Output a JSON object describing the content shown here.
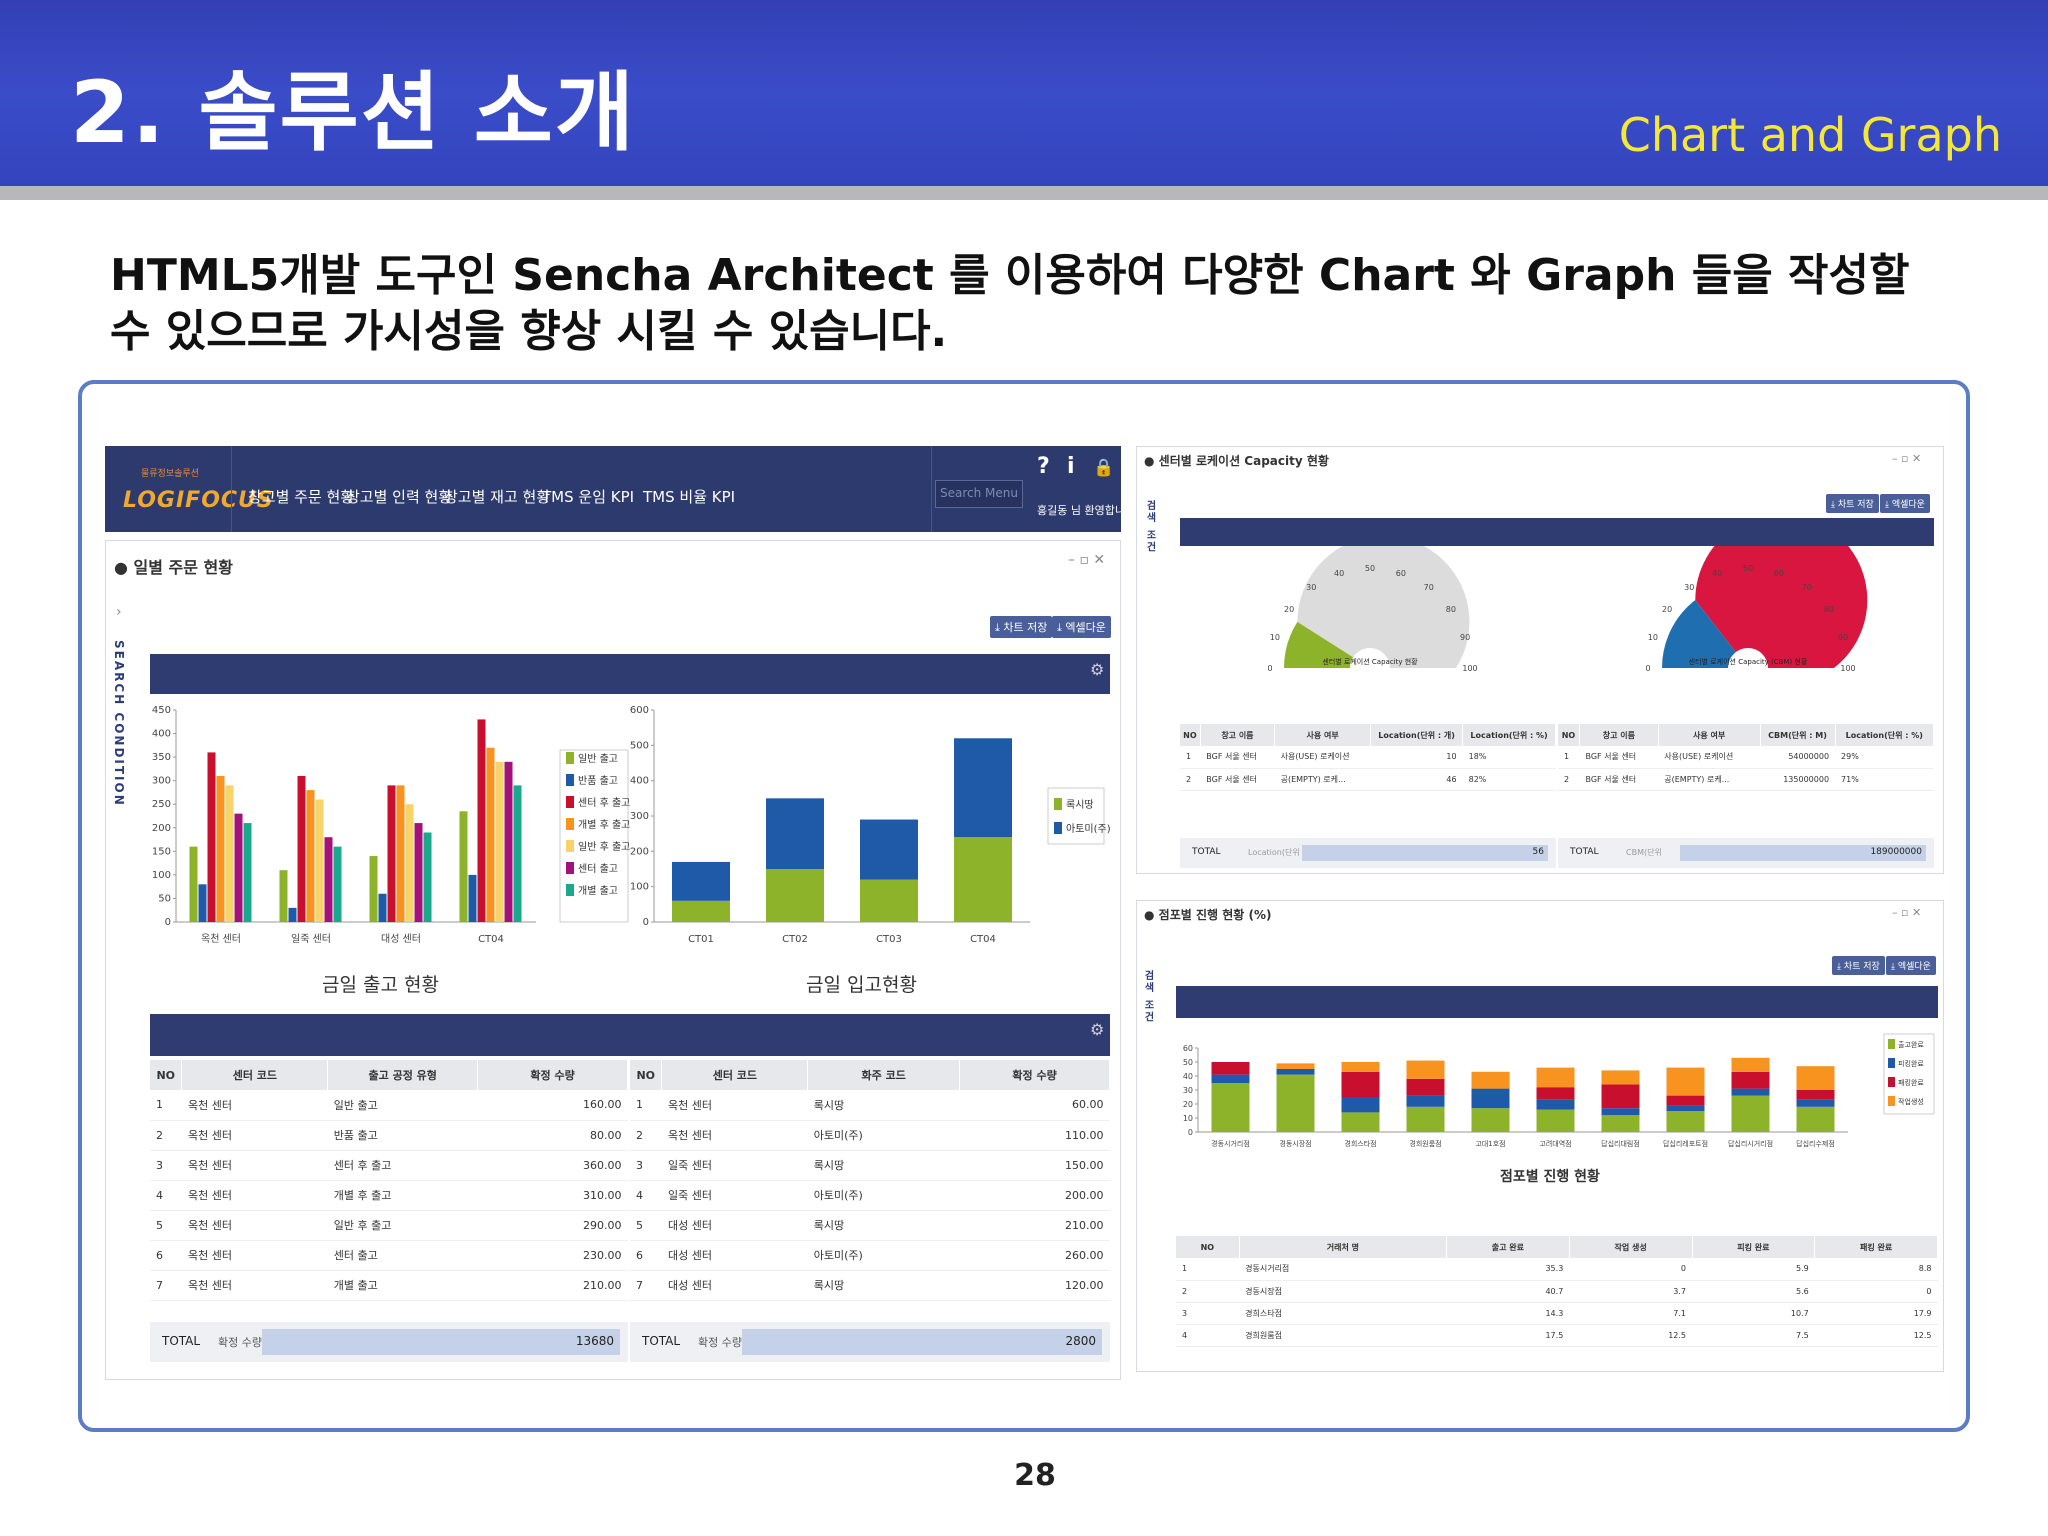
{
  "slide": {
    "title": "2. 솔루션 소개",
    "subtitle": "Chart and Graph",
    "desc_line1": "HTML5개발 도구인 Sencha Architect 를 이용하여 다양한 Chart 와 Graph 들을 작성할",
    "desc_line2": "수 있으므로 가시성을 향상 시킬 수 있습니다.",
    "page": "28"
  },
  "app": {
    "logo_small": "물류정보솔루션",
    "logo": "LOGIFOCUS",
    "nav": [
      "창고별 주문 현황",
      "창고별 인력 현황",
      "창고별 재고 현황",
      "TMS 운임 KPI",
      "TMS 비율 KPI"
    ],
    "search_placeholder": "Search Menu",
    "user_text": "홍길동 님 환영합니다",
    "icons": {
      "help": "?",
      "info": "i",
      "lock": "🔒"
    }
  },
  "left_panel": {
    "title": "일별 주문 현황",
    "side_label": "SEARCH CONDITION",
    "btn_save": "⤓ 차트 저장",
    "btn_excel": "⤓ 엑셀다운",
    "table_left": {
      "headers": [
        "NO",
        "센터 코드",
        "출고 공정 유형",
        "확정 수량"
      ],
      "rows": [
        [
          "1",
          "옥천 센터",
          "일반 출고",
          "160.00"
        ],
        [
          "2",
          "옥천 센터",
          "반품 출고",
          "80.00"
        ],
        [
          "3",
          "옥천 센터",
          "센터 후 출고",
          "360.00"
        ],
        [
          "4",
          "옥천 센터",
          "개별 후 출고",
          "310.00"
        ],
        [
          "5",
          "옥천 센터",
          "일반 후 출고",
          "290.00"
        ],
        [
          "6",
          "옥천 센터",
          "센터 출고",
          "230.00"
        ],
        [
          "7",
          "옥천 센터",
          "개별 출고",
          "210.00"
        ]
      ],
      "total_label": "TOTAL",
      "total_field": "확정 수량",
      "total_value": "13680"
    },
    "table_right": {
      "headers": [
        "NO",
        "센터 코드",
        "화주 코드",
        "확정 수량"
      ],
      "rows": [
        [
          "1",
          "옥천 센터",
          "록시땅",
          "60.00"
        ],
        [
          "2",
          "옥천 센터",
          "아토미(주)",
          "110.00"
        ],
        [
          "3",
          "일죽 센터",
          "록시땅",
          "150.00"
        ],
        [
          "4",
          "일죽 센터",
          "아토미(주)",
          "200.00"
        ],
        [
          "5",
          "대성 센터",
          "록시땅",
          "210.00"
        ],
        [
          "6",
          "대성 센터",
          "아토미(주)",
          "260.00"
        ],
        [
          "7",
          "대성 센터",
          "록시땅",
          "120.00"
        ]
      ],
      "total_label": "TOTAL",
      "total_field": "확정 수량",
      "total_value": "2800"
    }
  },
  "capacity_panel": {
    "title": "센터별 로케이션 Capacity 현황",
    "side_label": "검색 조건",
    "btn_save": "⤓ 차트 저장",
    "btn_excel": "⤓ 엑셀다운",
    "table_left": {
      "headers": [
        "NO",
        "창고 이름",
        "사용 여부",
        "Location(단위 : 개)",
        "Location(단위 : %)"
      ],
      "rows": [
        [
          "1",
          "BGF 서울 센터",
          "사용(USE) 로케이션",
          "10",
          "18%"
        ],
        [
          "2",
          "BGF 서울 센터",
          "공(EMPTY) 로케...",
          "46",
          "82%"
        ]
      ],
      "total_label": "TOTAL",
      "total_field": "Location(단위",
      "total_value": "56"
    },
    "table_right": {
      "headers": [
        "NO",
        "창고 이름",
        "사용 여부",
        "CBM(단위 : M)",
        "Location(단위 : %)"
      ],
      "rows": [
        [
          "1",
          "BGF 서울 센터",
          "사용(USE) 로케이션",
          "54000000",
          "29%"
        ],
        [
          "2",
          "BGF 서울 센터",
          "공(EMPTY) 로케...",
          "135000000",
          "71%"
        ]
      ],
      "total_label": "TOTAL",
      "total_field": "CBM(단위",
      "total_value": "189000000"
    }
  },
  "progress_panel": {
    "title": "점포별 진행 현황 (%)",
    "side_label": "검색 조건",
    "btn_save": "⤓ 차트 저장",
    "btn_excel": "⤓ 엑셀다운",
    "table": {
      "headers": [
        "NO",
        "거래처 명",
        "출고 완료",
        "작업 생성",
        "피킹 완료",
        "패킹 완료"
      ],
      "rows": [
        [
          "1",
          "경동시거리점",
          "35.3",
          "0",
          "5.9",
          "8.8"
        ],
        [
          "2",
          "경동시장점",
          "40.7",
          "3.7",
          "5.6",
          "0"
        ],
        [
          "3",
          "경희스타점",
          "14.3",
          "7.1",
          "10.7",
          "17.9"
        ],
        [
          "4",
          "경희원룸점",
          "17.5",
          "12.5",
          "7.5",
          "12.5"
        ]
      ]
    }
  },
  "chart_data": [
    {
      "type": "bar",
      "title": "금일 출고 현황",
      "categories": [
        "옥천 센터",
        "일죽 센터",
        "대성 센터",
        "CT04"
      ],
      "ylim": [
        0,
        450
      ],
      "yticks": [
        0,
        50,
        100,
        150,
        200,
        250,
        300,
        350,
        400,
        450
      ],
      "legend_position": "right",
      "series": [
        {
          "name": "일반 출고",
          "color": "#8db32a",
          "values": [
            160,
            110,
            140,
            235
          ]
        },
        {
          "name": "반품 출고",
          "color": "#1f5aa8",
          "values": [
            80,
            30,
            60,
            100
          ]
        },
        {
          "name": "센터 후 출고",
          "color": "#c8102e",
          "values": [
            360,
            310,
            290,
            430
          ]
        },
        {
          "name": "개별 후 출고",
          "color": "#f7931e",
          "values": [
            310,
            280,
            290,
            370
          ]
        },
        {
          "name": "일반 후 출고",
          "color": "#f6d36b",
          "values": [
            290,
            260,
            250,
            340
          ]
        },
        {
          "name": "센터 출고",
          "color": "#a3127a",
          "values": [
            230,
            180,
            210,
            340
          ]
        },
        {
          "name": "개별 출고",
          "color": "#1ba98d",
          "values": [
            210,
            160,
            190,
            290
          ]
        }
      ]
    },
    {
      "type": "bar",
      "stacked": true,
      "title": "금일 입고현황",
      "categories": [
        "CT01",
        "CT02",
        "CT03",
        "CT04"
      ],
      "ylim": [
        0,
        600
      ],
      "yticks": [
        0,
        100,
        200,
        300,
        400,
        500,
        600
      ],
      "legend_position": "right",
      "series": [
        {
          "name": "록시땅",
          "color": "#8db32a",
          "values": [
            60,
            150,
            120,
            240
          ]
        },
        {
          "name": "아토미(주)",
          "color": "#1f5aa8",
          "values": [
            110,
            200,
            170,
            280
          ]
        }
      ]
    },
    {
      "type": "gauge",
      "title": "센터별 로케이션 Capacity 현황",
      "range": [
        0,
        100
      ],
      "ticks": [
        0,
        10,
        20,
        30,
        40,
        50,
        60,
        70,
        80,
        90,
        100
      ],
      "value": 18,
      "colors": {
        "filled": "#8db32a",
        "empty": "#dcdcdc"
      }
    },
    {
      "type": "gauge",
      "title": "센터별 로케이션 Capacity (CBM) 현황",
      "range": [
        0,
        100
      ],
      "ticks": [
        0,
        10,
        20,
        30,
        40,
        50,
        60,
        70,
        80,
        90,
        100
      ],
      "value": 29,
      "colors": {
        "filled": "#1f6fb0",
        "empty": "#d9163f"
      }
    },
    {
      "type": "bar",
      "stacked": true,
      "title": "점포별 진행 현황",
      "categories": [
        "경동시거리점",
        "경동시장점",
        "경희스타점",
        "경희원룸점",
        "고대1호점",
        "고려대역점",
        "답십리대림점",
        "답십리레포트점",
        "답십리시거리점",
        "답십리수제점"
      ],
      "ylim": [
        0,
        60
      ],
      "yticks": [
        0,
        10,
        20,
        30,
        40,
        50,
        60
      ],
      "legend_position": "right",
      "series": [
        {
          "name": "출고완료",
          "color": "#8db32a",
          "values": [
            35,
            41,
            14,
            18,
            17,
            16,
            12,
            15,
            26,
            18
          ]
        },
        {
          "name": "피킹완료",
          "color": "#1f5aa8",
          "values": [
            6,
            4,
            11,
            8,
            14,
            7,
            5,
            4,
            5,
            5
          ]
        },
        {
          "name": "패킹완료",
          "color": "#c8102e",
          "values": [
            9,
            0,
            18,
            12,
            0,
            9,
            17,
            7,
            12,
            7
          ]
        },
        {
          "name": "작업생성",
          "color": "#f7931e",
          "values": [
            0,
            4,
            7,
            13,
            12,
            14,
            10,
            20,
            10,
            17
          ]
        }
      ]
    }
  ]
}
